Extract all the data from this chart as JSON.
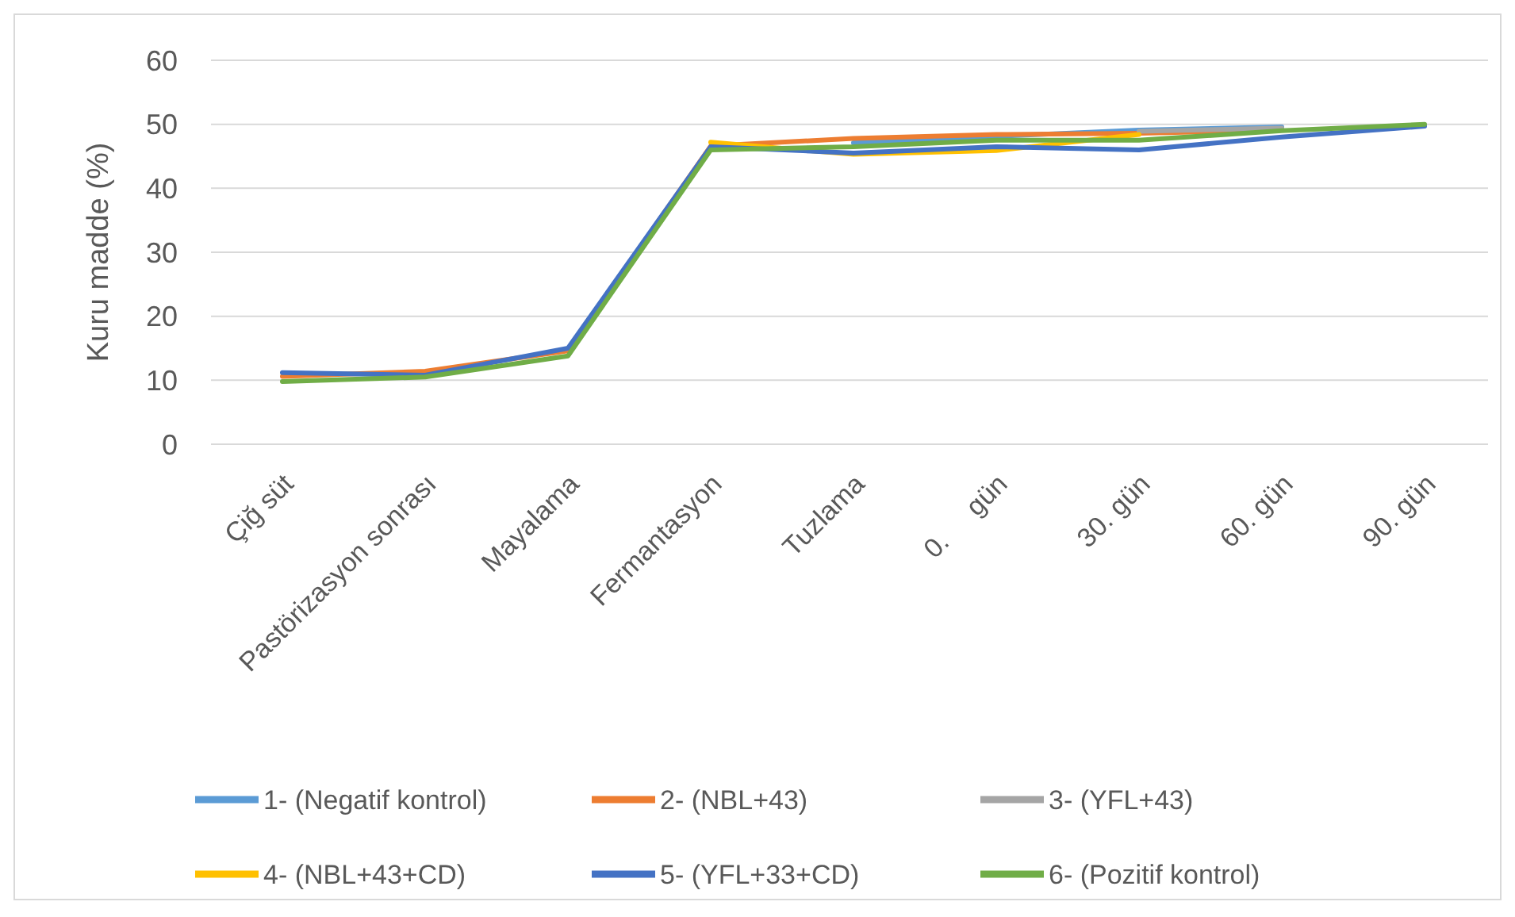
{
  "chart_data": {
    "type": "line",
    "ylabel": "Kuru madde (%)",
    "categories": [
      "Çiğ süt",
      "Pastörizasyon sonrası",
      "Mayalama",
      "Fermantasyon",
      "Tuzlama",
      "0.     gün",
      "30. gün",
      "60. gün",
      "90. gün"
    ],
    "ylim": [
      0,
      60
    ],
    "yticks": [
      0,
      10,
      20,
      30,
      40,
      50,
      60
    ],
    "grid": "y",
    "legend": "bottom",
    "marker": "none",
    "line_style": "solid",
    "series": [
      {
        "name": "1- (Negatif kontrol)",
        "color": "#5b9bd5",
        "values": [
          null,
          null,
          null,
          null,
          47.1,
          48.1,
          49.1,
          49.6,
          null
        ]
      },
      {
        "name": "2- (NBL+43)",
        "color": "#ed7d31",
        "values": [
          10.6,
          11.4,
          14.6,
          46.6,
          47.8,
          48.4,
          48.6,
          49.1,
          null
        ]
      },
      {
        "name": "3- (YFL+43)",
        "color": "#a5a5a5",
        "values": [
          null,
          null,
          null,
          null,
          null,
          null,
          48.9,
          49.4,
          null
        ]
      },
      {
        "name": "4- (NBL+43+CD)",
        "color": "#ffc000",
        "values": [
          null,
          null,
          null,
          47.2,
          45.3,
          45.9,
          48.4,
          null,
          null
        ]
      },
      {
        "name": "5- (YFL+33+CD)",
        "color": "#4472c4",
        "values": [
          11.2,
          10.8,
          15,
          46.5,
          45.5,
          46.5,
          46,
          48,
          49.7
        ]
      },
      {
        "name": "6- (Pozitif kontrol)",
        "color": "#70ad47",
        "values": [
          9.8,
          10.5,
          13.8,
          46,
          46.5,
          47.5,
          47.5,
          49,
          50
        ]
      }
    ]
  }
}
